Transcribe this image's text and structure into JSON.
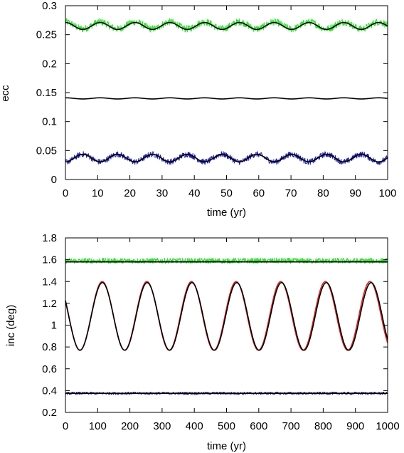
{
  "chart_data": [
    {
      "type": "line",
      "xlabel": "time (yr)",
      "ylabel": "ecc",
      "xlim": [
        0,
        100
      ],
      "ylim": [
        0,
        0.3
      ],
      "xticks": [
        "0",
        "10",
        "20",
        "30",
        "40",
        "50",
        "60",
        "70",
        "80",
        "90",
        "100"
      ],
      "yticks": [
        "0",
        "0.05",
        "0.1",
        "0.15",
        "0.2",
        "0.25",
        "0.3"
      ],
      "grid": false,
      "series": [
        {
          "color": "#33dd33",
          "style": "noisy",
          "x": [
            0,
            100
          ],
          "y_mean": 0.266,
          "amplitude": 0.006,
          "period": 10.8,
          "phase": 0.0,
          "noise": 0.006
        },
        {
          "color": "#000000",
          "style": "smooth",
          "x": [
            0,
            100
          ],
          "y_mean": 0.265,
          "amplitude": 0.006,
          "period": 10.8,
          "phase": 0.0,
          "noise": 0
        },
        {
          "color": "#000000",
          "style": "smooth",
          "x": [
            0,
            100
          ],
          "y_mean": 0.14,
          "amplitude": 0.001,
          "period": 10.8,
          "phase": 0.0,
          "noise": 0
        },
        {
          "color": "#2222aa",
          "style": "noisy",
          "x": [
            0,
            100
          ],
          "y_mean": 0.037,
          "amplitude": 0.0065,
          "period": 10.8,
          "phase": 3.14,
          "noise": 0.005
        },
        {
          "color": "#000000",
          "style": "smooth",
          "x": [
            0,
            100
          ],
          "y_mean": 0.037,
          "amplitude": 0.0065,
          "period": 10.8,
          "phase": 3.14,
          "noise": 0
        }
      ]
    },
    {
      "type": "line",
      "xlabel": "time (yr)",
      "ylabel": "inc (deg)",
      "xlim": [
        0,
        1000
      ],
      "ylim": [
        0.2,
        1.8
      ],
      "xticks": [
        "0",
        "100",
        "200",
        "300",
        "400",
        "500",
        "600",
        "700",
        "800",
        "900",
        "1000"
      ],
      "yticks": [
        "0.2",
        "0.4",
        "0.6",
        "0.8",
        "1",
        "1.2",
        "1.4",
        "1.6",
        "1.8"
      ],
      "grid": false,
      "series": [
        {
          "color": "#33dd33",
          "style": "noisy",
          "x": [
            0,
            1000
          ],
          "y_mean": 1.59,
          "amplitude": 0.0,
          "period": 140,
          "phase": 0.0,
          "noise": 0.025
        },
        {
          "color": "#000000",
          "style": "smooth",
          "x": [
            0,
            1000
          ],
          "y_mean": 1.58,
          "amplitude": 0.0,
          "period": 140,
          "phase": 0.0,
          "noise": 0
        },
        {
          "color": "#dd2222",
          "style": "smooth",
          "x": [
            0,
            1000
          ],
          "y_mean": 1.085,
          "amplitude": 0.315,
          "period": 138.5,
          "phase": 1.1,
          "noise": 0
        },
        {
          "color": "#000000",
          "style": "smooth",
          "x": [
            0,
            1000
          ],
          "y_mean": 1.08,
          "amplitude": 0.31,
          "period": 139.0,
          "phase": 1.1,
          "noise": 0
        },
        {
          "color": "#2222aa",
          "style": "noisy",
          "x": [
            0,
            1000
          ],
          "y_mean": 0.375,
          "amplitude": 0.0,
          "period": 140,
          "phase": 0.0,
          "noise": 0.012
        },
        {
          "color": "#000000",
          "style": "smooth",
          "x": [
            0,
            1000
          ],
          "y_mean": 0.375,
          "amplitude": 0.0,
          "period": 140,
          "phase": 0.0,
          "noise": 0
        }
      ]
    }
  ]
}
